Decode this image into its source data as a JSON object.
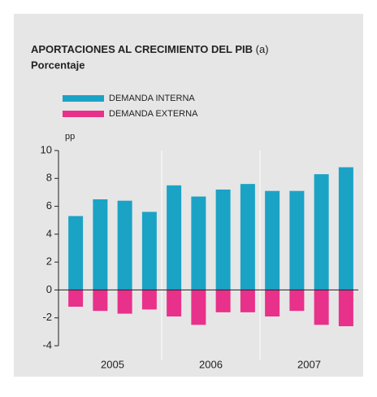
{
  "chart_data": {
    "type": "bar",
    "title": "APORTACIONES AL CRECIMIENTO DEL PIB",
    "title_note": "(a)",
    "subtitle": "Porcentaje",
    "y_unit": "pp",
    "categories": [
      null,
      null,
      null,
      null,
      null,
      null,
      null,
      null,
      null,
      null,
      null,
      null
    ],
    "groups": [
      "2005",
      "2006",
      "2007"
    ],
    "series": [
      {
        "name": "DEMANDA INTERNA",
        "color": "#1ba3c6",
        "values": [
          5.3,
          6.5,
          6.4,
          5.6,
          7.5,
          6.7,
          7.2,
          7.6,
          7.1,
          7.1,
          8.3,
          8.8
        ]
      },
      {
        "name": "DEMANDA EXTERNA",
        "color": "#e8318a",
        "values": [
          -1.2,
          -1.5,
          -1.7,
          -1.4,
          -1.9,
          -2.5,
          -1.6,
          -1.6,
          -1.9,
          -1.5,
          -2.5,
          -2.6
        ]
      }
    ],
    "ylim": [
      -4,
      10
    ],
    "yticks": [
      -4,
      -2,
      0,
      2,
      4,
      6,
      8,
      10
    ]
  }
}
